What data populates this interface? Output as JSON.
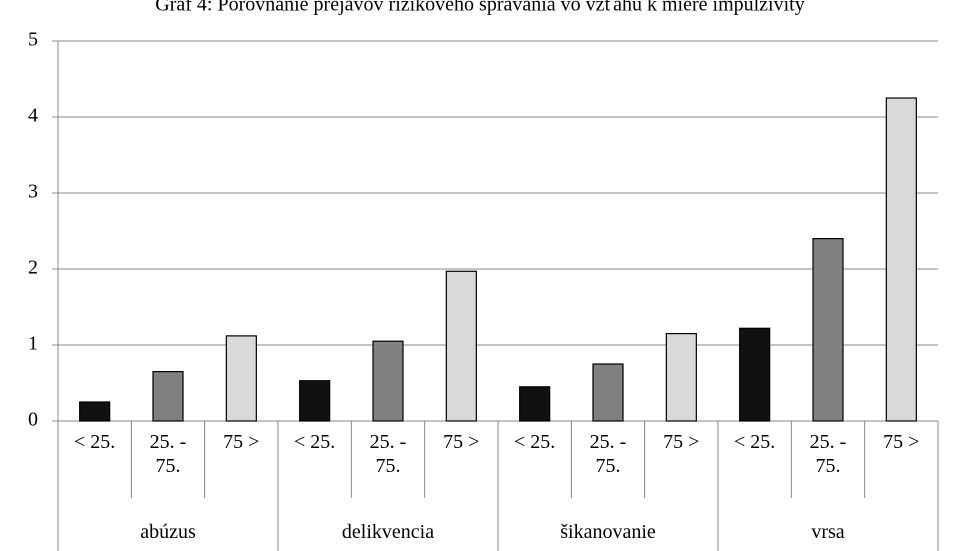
{
  "chart_data": {
    "type": "bar",
    "title": "Graf 4: Porovnanie prejavov rizikového správania vo vzťahu k miere impulzivity",
    "categories": [
      "abúzus",
      "delikvencia",
      "šikanovanie",
      "vrsa"
    ],
    "series": [
      {
        "name": "< 25.",
        "color": "#111111",
        "values": [
          0.25,
          0.53,
          0.45,
          1.22
        ]
      },
      {
        "name": "25. - 75.",
        "color": "#808080",
        "values": [
          0.65,
          1.05,
          0.75,
          2.4
        ]
      },
      {
        "name": "75 >",
        "color": "#d9d9d9",
        "values": [
          1.12,
          1.97,
          1.15,
          4.25
        ]
      }
    ],
    "ylim": [
      0,
      5
    ],
    "yticks": [
      0,
      1,
      2,
      3,
      4,
      5
    ],
    "grid": true
  }
}
